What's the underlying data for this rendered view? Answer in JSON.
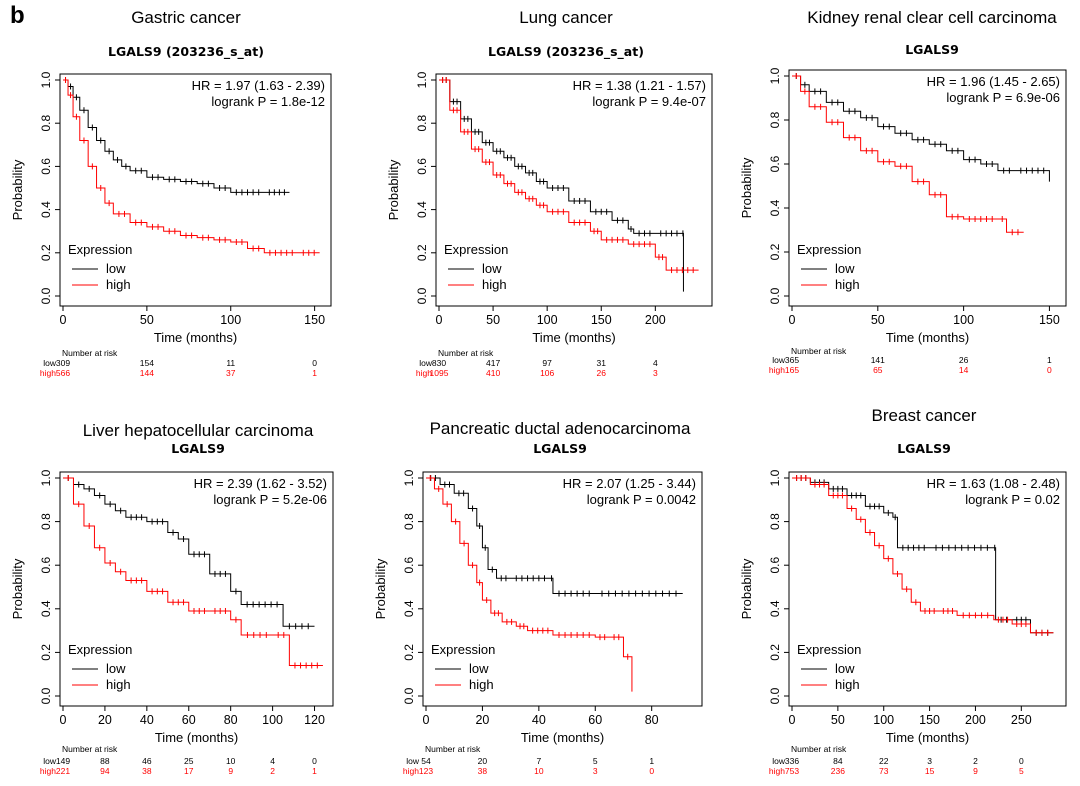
{
  "panel_letter": "b",
  "colors": {
    "low": "#000000",
    "high": "#ff0000",
    "axis": "#000000"
  },
  "common": {
    "ylabel": "Probability",
    "xlabel": "Time (months)",
    "legend_title": "Expression",
    "legend_low": "low",
    "legend_high": "high",
    "risk_title": "Number at risk",
    "risk_low_label": "low",
    "risk_high_label": "high"
  },
  "chart_data": [
    {
      "type": "line",
      "title": "Gastric cancer",
      "gene": "LGALS9 (203236_s_at)",
      "hr": "HR = 1.97 (1.63 - 2.39)",
      "logrank": "logrank P = 1.8e-12",
      "xlim": [
        0,
        155
      ],
      "ylim": [
        0,
        1
      ],
      "xticks": [
        0,
        50,
        100,
        150
      ],
      "yticks": [
        "0.0",
        "0.2",
        "0.4",
        "0.6",
        "0.8",
        "1.0"
      ],
      "risk_times": [
        0,
        50,
        100,
        150
      ],
      "risk_low": [
        "309",
        "154",
        "11",
        "0"
      ],
      "risk_high": [
        "566",
        "144",
        "37",
        "1"
      ],
      "series": [
        {
          "name": "low",
          "points": [
            [
              0,
              1
            ],
            [
              3,
              0.97
            ],
            [
              6,
              0.92
            ],
            [
              10,
              0.86
            ],
            [
              15,
              0.78
            ],
            [
              20,
              0.72
            ],
            [
              25,
              0.67
            ],
            [
              30,
              0.63
            ],
            [
              35,
              0.6
            ],
            [
              40,
              0.58
            ],
            [
              50,
              0.55
            ],
            [
              60,
              0.54
            ],
            [
              70,
              0.53
            ],
            [
              80,
              0.52
            ],
            [
              90,
              0.5
            ],
            [
              100,
              0.48
            ],
            [
              120,
              0.48
            ],
            [
              135,
              0.48
            ]
          ]
        },
        {
          "name": "high",
          "points": [
            [
              0,
              1
            ],
            [
              3,
              0.93
            ],
            [
              6,
              0.83
            ],
            [
              10,
              0.72
            ],
            [
              15,
              0.6
            ],
            [
              20,
              0.5
            ],
            [
              25,
              0.43
            ],
            [
              30,
              0.38
            ],
            [
              40,
              0.34
            ],
            [
              50,
              0.32
            ],
            [
              60,
              0.3
            ],
            [
              70,
              0.28
            ],
            [
              80,
              0.27
            ],
            [
              90,
              0.26
            ],
            [
              100,
              0.25
            ],
            [
              110,
              0.22
            ],
            [
              120,
              0.2
            ],
            [
              140,
              0.2
            ],
            [
              153,
              0.2
            ]
          ]
        }
      ]
    },
    {
      "type": "line",
      "title": "Lung cancer",
      "gene": "LGALS9 (203236_s_at)",
      "hr": "HR = 1.38 (1.21 - 1.57)",
      "logrank": "logrank P = 9.4e-07",
      "xlim": [
        0,
        245
      ],
      "ylim": [
        0,
        1
      ],
      "xticks": [
        0,
        50,
        100,
        150,
        200
      ],
      "yticks": [
        "0.0",
        "0.2",
        "0.4",
        "0.6",
        "0.8",
        "1.0"
      ],
      "risk_times": [
        0,
        50,
        100,
        150,
        200
      ],
      "risk_low": [
        "830",
        "417",
        "97",
        "31",
        "4"
      ],
      "risk_high": [
        "1095",
        "410",
        "106",
        "26",
        "3"
      ],
      "series": [
        {
          "name": "low",
          "points": [
            [
              0,
              1
            ],
            [
              10,
              0.9
            ],
            [
              20,
              0.82
            ],
            [
              30,
              0.76
            ],
            [
              40,
              0.71
            ],
            [
              50,
              0.67
            ],
            [
              60,
              0.64
            ],
            [
              70,
              0.6
            ],
            [
              80,
              0.57
            ],
            [
              90,
              0.53
            ],
            [
              100,
              0.5
            ],
            [
              120,
              0.44
            ],
            [
              140,
              0.39
            ],
            [
              160,
              0.35
            ],
            [
              175,
              0.31
            ],
            [
              180,
              0.29
            ],
            [
              200,
              0.29
            ],
            [
              225,
              0.29
            ],
            [
              226,
              0.02
            ]
          ]
        },
        {
          "name": "high",
          "points": [
            [
              0,
              1
            ],
            [
              10,
              0.86
            ],
            [
              20,
              0.76
            ],
            [
              30,
              0.68
            ],
            [
              40,
              0.62
            ],
            [
              50,
              0.56
            ],
            [
              60,
              0.52
            ],
            [
              70,
              0.48
            ],
            [
              80,
              0.45
            ],
            [
              90,
              0.42
            ],
            [
              100,
              0.39
            ],
            [
              120,
              0.34
            ],
            [
              140,
              0.3
            ],
            [
              150,
              0.26
            ],
            [
              175,
              0.24
            ],
            [
              200,
              0.18
            ],
            [
              210,
              0.12
            ],
            [
              240,
              0.12
            ]
          ]
        }
      ]
    },
    {
      "type": "line",
      "title": "Kidney renal clear cell carcinoma",
      "gene": "LGALS9",
      "hr": "HR = 1.96 (1.45 - 2.65)",
      "logrank": "logrank P = 6.9e-06",
      "xlim": [
        0,
        155
      ],
      "ylim": [
        0,
        1
      ],
      "xticks": [
        0,
        50,
        100,
        150
      ],
      "yticks": [
        "0.0",
        "0.2",
        "0.4",
        "0.6",
        "0.8",
        "1.0"
      ],
      "risk_times": [
        0,
        50,
        100,
        150
      ],
      "risk_low": [
        "365",
        "141",
        "26",
        "1"
      ],
      "risk_high": [
        "165",
        "65",
        "14",
        "0"
      ],
      "series": [
        {
          "name": "low",
          "points": [
            [
              0,
              1
            ],
            [
              5,
              0.96
            ],
            [
              10,
              0.93
            ],
            [
              20,
              0.88
            ],
            [
              30,
              0.84
            ],
            [
              40,
              0.81
            ],
            [
              50,
              0.77
            ],
            [
              60,
              0.74
            ],
            [
              70,
              0.71
            ],
            [
              80,
              0.69
            ],
            [
              90,
              0.66
            ],
            [
              100,
              0.62
            ],
            [
              110,
              0.6
            ],
            [
              120,
              0.57
            ],
            [
              130,
              0.57
            ],
            [
              150,
              0.52
            ]
          ]
        },
        {
          "name": "high",
          "points": [
            [
              0,
              1
            ],
            [
              5,
              0.93
            ],
            [
              10,
              0.86
            ],
            [
              20,
              0.79
            ],
            [
              30,
              0.72
            ],
            [
              40,
              0.66
            ],
            [
              50,
              0.61
            ],
            [
              60,
              0.59
            ],
            [
              70,
              0.52
            ],
            [
              80,
              0.46
            ],
            [
              90,
              0.36
            ],
            [
              100,
              0.35
            ],
            [
              120,
              0.35
            ],
            [
              125,
              0.29
            ],
            [
              135,
              0.29
            ]
          ]
        }
      ]
    },
    {
      "type": "line",
      "title": "Liver hepatocellular carcinoma",
      "gene": "LGALS9",
      "hr": "HR = 2.39 (1.62 - 3.52)",
      "logrank": "logrank P = 5.2e-06",
      "xlim": [
        0,
        125
      ],
      "ylim": [
        0,
        1
      ],
      "xticks": [
        0,
        20,
        40,
        60,
        80,
        100,
        120
      ],
      "yticks": [
        "0.0",
        "0.2",
        "0.4",
        "0.6",
        "0.8",
        "1.0"
      ],
      "risk_times": [
        0,
        20,
        40,
        60,
        80,
        100,
        120
      ],
      "risk_low": [
        "149",
        "88",
        "46",
        "25",
        "10",
        "4",
        "0"
      ],
      "risk_high": [
        "221",
        "94",
        "38",
        "17",
        "9",
        "2",
        "1"
      ],
      "series": [
        {
          "name": "low",
          "points": [
            [
              0,
              1
            ],
            [
              5,
              0.97
            ],
            [
              10,
              0.95
            ],
            [
              15,
              0.92
            ],
            [
              20,
              0.88
            ],
            [
              25,
              0.85
            ],
            [
              30,
              0.82
            ],
            [
              40,
              0.8
            ],
            [
              50,
              0.75
            ],
            [
              55,
              0.72
            ],
            [
              60,
              0.65
            ],
            [
              70,
              0.56
            ],
            [
              80,
              0.48
            ],
            [
              85,
              0.42
            ],
            [
              105,
              0.32
            ],
            [
              120,
              0.32
            ]
          ]
        },
        {
          "name": "high",
          "points": [
            [
              0,
              1
            ],
            [
              5,
              0.88
            ],
            [
              10,
              0.78
            ],
            [
              15,
              0.68
            ],
            [
              20,
              0.61
            ],
            [
              25,
              0.57
            ],
            [
              30,
              0.53
            ],
            [
              40,
              0.48
            ],
            [
              50,
              0.43
            ],
            [
              60,
              0.39
            ],
            [
              70,
              0.39
            ],
            [
              80,
              0.35
            ],
            [
              85,
              0.28
            ],
            [
              100,
              0.28
            ],
            [
              108,
              0.14
            ],
            [
              124,
              0.14
            ]
          ]
        }
      ]
    },
    {
      "type": "line",
      "title": "Pancreatic ductal adenocarcinoma",
      "gene": "LGALS9",
      "hr": "HR = 2.07 (1.25 - 3.44)",
      "logrank": "logrank P = 0.0042",
      "xlim": [
        0,
        95
      ],
      "ylim": [
        0,
        1
      ],
      "xticks": [
        0,
        20,
        40,
        60,
        80
      ],
      "yticks": [
        "0.0",
        "0.2",
        "0.4",
        "0.6",
        "0.8",
        "1.0"
      ],
      "risk_times": [
        0,
        20,
        40,
        60,
        80
      ],
      "risk_low": [
        "54",
        "20",
        "7",
        "5",
        "1"
      ],
      "risk_high": [
        "123",
        "38",
        "10",
        "3",
        "0"
      ],
      "series": [
        {
          "name": "low",
          "points": [
            [
              0,
              1
            ],
            [
              5,
              0.97
            ],
            [
              10,
              0.93
            ],
            [
              15,
              0.86
            ],
            [
              18,
              0.78
            ],
            [
              20,
              0.68
            ],
            [
              22,
              0.58
            ],
            [
              25,
              0.54
            ],
            [
              30,
              0.54
            ],
            [
              44,
              0.54
            ],
            [
              45,
              0.47
            ],
            [
              60,
              0.47
            ],
            [
              91,
              0.47
            ]
          ]
        },
        {
          "name": "high",
          "points": [
            [
              0,
              1
            ],
            [
              3,
              0.95
            ],
            [
              6,
              0.88
            ],
            [
              9,
              0.8
            ],
            [
              12,
              0.7
            ],
            [
              15,
              0.6
            ],
            [
              18,
              0.52
            ],
            [
              20,
              0.44
            ],
            [
              23,
              0.38
            ],
            [
              27,
              0.34
            ],
            [
              32,
              0.32
            ],
            [
              36,
              0.3
            ],
            [
              45,
              0.28
            ],
            [
              60,
              0.27
            ],
            [
              65,
              0.27
            ],
            [
              70,
              0.18
            ],
            [
              73,
              0.02
            ]
          ]
        }
      ]
    },
    {
      "type": "line",
      "title": "Breast cancer",
      "gene": "LGALS9",
      "hr": "HR = 1.63 (1.08 - 2.48)",
      "logrank": "logrank P = 0.02",
      "xlim": [
        0,
        290
      ],
      "ylim": [
        0,
        1
      ],
      "xticks": [
        0,
        50,
        100,
        150,
        200,
        250
      ],
      "yticks": [
        "0.0",
        "0.2",
        "0.4",
        "0.6",
        "0.8",
        "1.0"
      ],
      "risk_times": [
        0,
        50,
        100,
        150,
        200,
        250
      ],
      "risk_low": [
        "336",
        "84",
        "22",
        "3",
        "2",
        "0"
      ],
      "risk_high": [
        "753",
        "236",
        "73",
        "15",
        "9",
        "5"
      ],
      "series": [
        {
          "name": "low",
          "points": [
            [
              0,
              1
            ],
            [
              20,
              0.98
            ],
            [
              40,
              0.95
            ],
            [
              60,
              0.92
            ],
            [
              80,
              0.87
            ],
            [
              100,
              0.84
            ],
            [
              110,
              0.82
            ],
            [
              115,
              0.68
            ],
            [
              150,
              0.68
            ],
            [
              220,
              0.68
            ],
            [
              222,
              0.35
            ],
            [
              240,
              0.35
            ],
            [
              260,
              0.29
            ],
            [
              285,
              0.29
            ]
          ]
        },
        {
          "name": "high",
          "points": [
            [
              0,
              1
            ],
            [
              20,
              0.97
            ],
            [
              40,
              0.92
            ],
            [
              60,
              0.86
            ],
            [
              70,
              0.81
            ],
            [
              80,
              0.75
            ],
            [
              90,
              0.69
            ],
            [
              100,
              0.63
            ],
            [
              110,
              0.56
            ],
            [
              120,
              0.49
            ],
            [
              130,
              0.43
            ],
            [
              140,
              0.39
            ],
            [
              160,
              0.39
            ],
            [
              180,
              0.37
            ],
            [
              220,
              0.35
            ],
            [
              240,
              0.33
            ],
            [
              260,
              0.29
            ],
            [
              285,
              0.29
            ]
          ]
        }
      ]
    }
  ]
}
